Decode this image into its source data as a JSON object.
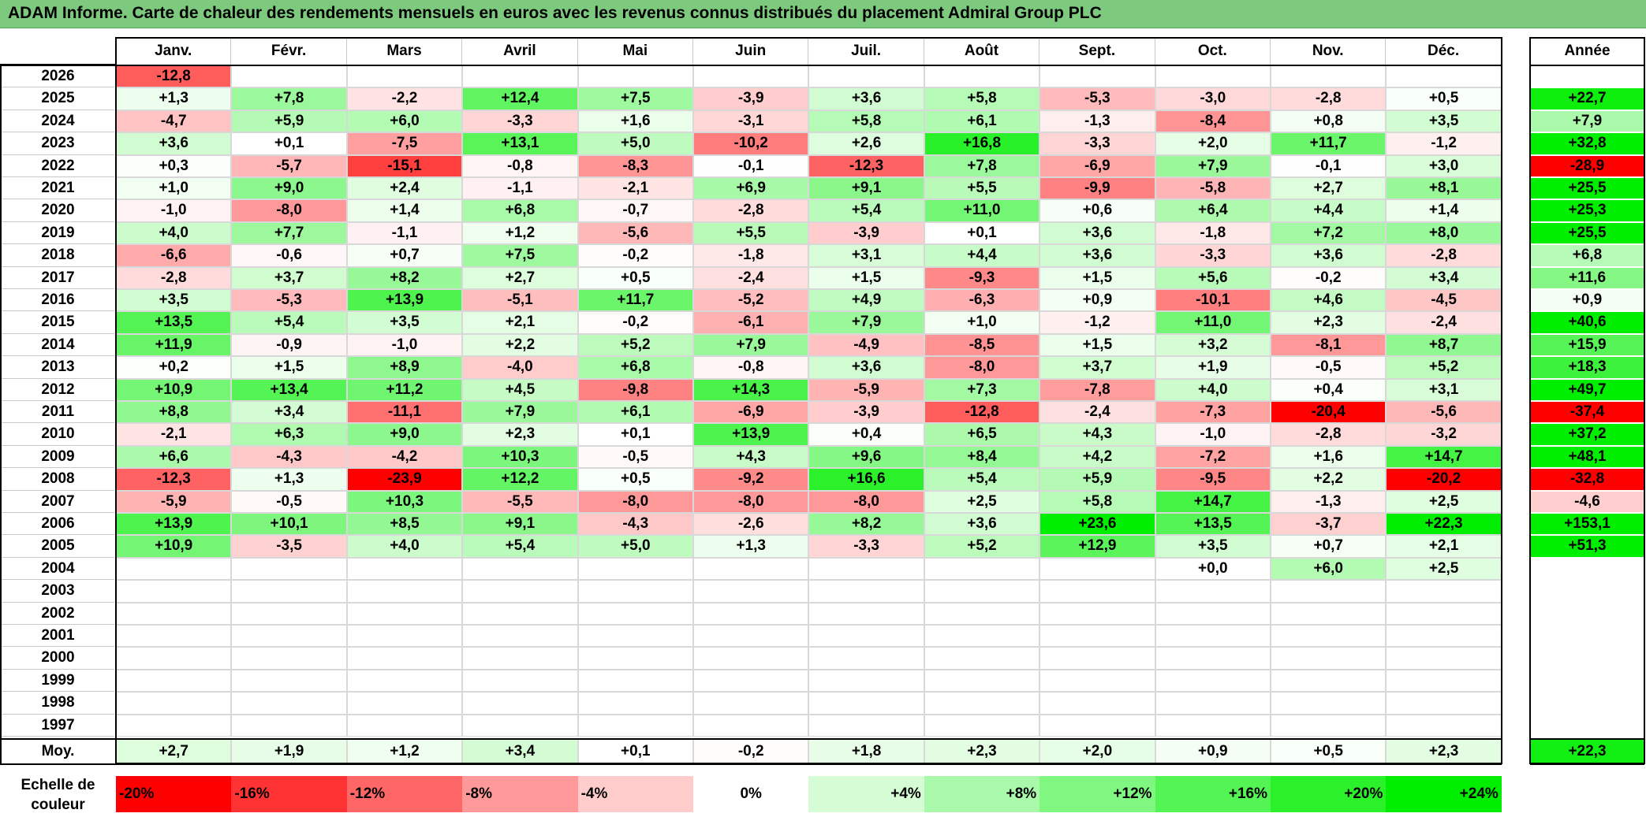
{
  "title": "ADAM Informe. Carte de chaleur des rendements mensuels en euros avec les revenus connus distribués du placement Admiral Group PLC",
  "colors": {
    "title_bg": "#7dc97d",
    "positive_max": "#00ee00",
    "negative_max": "#ff0000"
  },
  "chart_data": {
    "type": "heatmap",
    "title": "ADAM Informe. Carte de chaleur des rendements mensuels en euros avec les revenus connus distribués du placement Admiral Group PLC",
    "months": [
      "Janv.",
      "Févr.",
      "Mars",
      "Avril",
      "Mai",
      "Juin",
      "Juil.",
      "Août",
      "Sept.",
      "Oct.",
      "Nov.",
      "Déc."
    ],
    "year_header": "Année",
    "rows": [
      {
        "year": "2026",
        "values": [
          "-12,8",
          "",
          "",
          "",
          "",
          "",
          "",
          "",
          "",
          "",
          "",
          ""
        ],
        "annual": ""
      },
      {
        "year": "2025",
        "values": [
          "+1,3",
          "+7,8",
          "-2,2",
          "+12,4",
          "+7,5",
          "-3,9",
          "+3,6",
          "+5,8",
          "-5,3",
          "-3,0",
          "-2,8",
          "+0,5"
        ],
        "annual": "+22,7"
      },
      {
        "year": "2024",
        "values": [
          "-4,7",
          "+5,9",
          "+6,0",
          "-3,3",
          "+1,6",
          "-3,1",
          "+5,8",
          "+6,1",
          "-1,3",
          "-8,4",
          "+0,8",
          "+3,5"
        ],
        "annual": "+7,9"
      },
      {
        "year": "2023",
        "values": [
          "+3,6",
          "+0,1",
          "-7,5",
          "+13,1",
          "+5,0",
          "-10,2",
          "+2,6",
          "+16,8",
          "-3,3",
          "+2,0",
          "+11,7",
          "-1,2"
        ],
        "annual": "+32,8"
      },
      {
        "year": "2022",
        "values": [
          "+0,3",
          "-5,7",
          "-15,1",
          "-0,8",
          "-8,3",
          "-0,1",
          "-12,3",
          "+7,8",
          "-6,9",
          "+7,9",
          "-0,1",
          "+3,0"
        ],
        "annual": "-28,9"
      },
      {
        "year": "2021",
        "values": [
          "+1,0",
          "+9,0",
          "+2,4",
          "-1,1",
          "-2,1",
          "+6,9",
          "+9,1",
          "+5,5",
          "-9,9",
          "-5,8",
          "+2,7",
          "+8,1"
        ],
        "annual": "+25,5"
      },
      {
        "year": "2020",
        "values": [
          "-1,0",
          "-8,0",
          "+1,4",
          "+6,8",
          "-0,7",
          "-2,8",
          "+5,4",
          "+11,0",
          "+0,6",
          "+6,4",
          "+4,4",
          "+1,4"
        ],
        "annual": "+25,3"
      },
      {
        "year": "2019",
        "values": [
          "+4,0",
          "+7,7",
          "-1,1",
          "+1,2",
          "-5,6",
          "+5,5",
          "-3,9",
          "+0,1",
          "+3,6",
          "-1,8",
          "+7,2",
          "+8,0"
        ],
        "annual": "+25,5"
      },
      {
        "year": "2018",
        "values": [
          "-6,6",
          "-0,6",
          "+0,7",
          "+7,5",
          "-0,2",
          "-1,8",
          "+3,1",
          "+4,4",
          "+3,6",
          "-3,3",
          "+3,6",
          "-2,8"
        ],
        "annual": "+6,8"
      },
      {
        "year": "2017",
        "values": [
          "-2,8",
          "+3,7",
          "+8,2",
          "+2,7",
          "+0,5",
          "-2,4",
          "+1,5",
          "-9,3",
          "+1,5",
          "+5,6",
          "-0,2",
          "+3,4"
        ],
        "annual": "+11,6"
      },
      {
        "year": "2016",
        "values": [
          "+3,5",
          "-5,3",
          "+13,9",
          "-5,1",
          "+11,7",
          "-5,2",
          "+4,9",
          "-6,3",
          "+0,9",
          "-10,1",
          "+4,6",
          "-4,5"
        ],
        "annual": "+0,9"
      },
      {
        "year": "2015",
        "values": [
          "+13,5",
          "+5,4",
          "+3,5",
          "+2,1",
          "-0,2",
          "-6,1",
          "+7,9",
          "+1,0",
          "-1,2",
          "+11,0",
          "+2,3",
          "-2,4"
        ],
        "annual": "+40,6"
      },
      {
        "year": "2014",
        "values": [
          "+11,9",
          "-0,9",
          "-1,0",
          "+2,2",
          "+5,2",
          "+7,9",
          "-4,9",
          "-8,5",
          "+1,5",
          "+3,2",
          "-8,1",
          "+8,7"
        ],
        "annual": "+15,9"
      },
      {
        "year": "2013",
        "values": [
          "+0,2",
          "+1,5",
          "+8,9",
          "-4,0",
          "+6,8",
          "-0,8",
          "+3,6",
          "-8,0",
          "+3,7",
          "+1,9",
          "-0,5",
          "+5,2"
        ],
        "annual": "+18,3"
      },
      {
        "year": "2012",
        "values": [
          "+10,9",
          "+13,4",
          "+11,2",
          "+4,5",
          "-9,8",
          "+14,3",
          "-5,9",
          "+7,3",
          "-7,8",
          "+4,0",
          "+0,4",
          "+3,1"
        ],
        "annual": "+49,7"
      },
      {
        "year": "2011",
        "values": [
          "+8,8",
          "+3,4",
          "-11,1",
          "+7,9",
          "+6,1",
          "-6,9",
          "-3,9",
          "-12,8",
          "-2,4",
          "-7,3",
          "-20,4",
          "-5,6"
        ],
        "annual": "-37,4"
      },
      {
        "year": "2010",
        "values": [
          "-2,1",
          "+6,3",
          "+9,0",
          "+2,3",
          "+0,1",
          "+13,9",
          "+0,4",
          "+6,5",
          "+4,3",
          "-1,0",
          "-2,8",
          "-3,2"
        ],
        "annual": "+37,2"
      },
      {
        "year": "2009",
        "values": [
          "+6,6",
          "-4,3",
          "-4,2",
          "+10,3",
          "-0,5",
          "+4,3",
          "+9,6",
          "+8,4",
          "+4,2",
          "-7,2",
          "+1,6",
          "+14,7"
        ],
        "annual": "+48,1"
      },
      {
        "year": "2008",
        "values": [
          "-12,3",
          "+1,3",
          "-23,9",
          "+12,2",
          "+0,5",
          "-9,2",
          "+16,6",
          "+5,4",
          "+5,9",
          "-9,5",
          "+2,2",
          "-20,2"
        ],
        "annual": "-32,8"
      },
      {
        "year": "2007",
        "values": [
          "-5,9",
          "-0,5",
          "+10,3",
          "-5,5",
          "-8,0",
          "-8,0",
          "-8,0",
          "+2,5",
          "+5,8",
          "+14,7",
          "-1,3",
          "+2,5"
        ],
        "annual": "-4,6"
      },
      {
        "year": "2006",
        "values": [
          "+13,9",
          "+10,1",
          "+8,5",
          "+9,1",
          "-4,3",
          "-2,6",
          "+8,2",
          "+3,6",
          "+23,6",
          "+13,5",
          "-3,7",
          "+22,3"
        ],
        "annual": "+153,1"
      },
      {
        "year": "2005",
        "values": [
          "+10,9",
          "-3,5",
          "+4,0",
          "+5,4",
          "+5,0",
          "+1,3",
          "-3,3",
          "+5,2",
          "+12,9",
          "+3,5",
          "+0,7",
          "+2,1"
        ],
        "annual": "+51,3"
      },
      {
        "year": "2004",
        "values": [
          "",
          "",
          "",
          "",
          "",
          "",
          "",
          "",
          "",
          "+0,0",
          "+6,0",
          "+2,5"
        ],
        "annual": ""
      },
      {
        "year": "2003",
        "values": [
          "",
          "",
          "",
          "",
          "",
          "",
          "",
          "",
          "",
          "",
          "",
          ""
        ],
        "annual": ""
      },
      {
        "year": "2002",
        "values": [
          "",
          "",
          "",
          "",
          "",
          "",
          "",
          "",
          "",
          "",
          "",
          ""
        ],
        "annual": ""
      },
      {
        "year": "2001",
        "values": [
          "",
          "",
          "",
          "",
          "",
          "",
          "",
          "",
          "",
          "",
          "",
          ""
        ],
        "annual": ""
      },
      {
        "year": "2000",
        "values": [
          "",
          "",
          "",
          "",
          "",
          "",
          "",
          "",
          "",
          "",
          "",
          ""
        ],
        "annual": ""
      },
      {
        "year": "1999",
        "values": [
          "",
          "",
          "",
          "",
          "",
          "",
          "",
          "",
          "",
          "",
          "",
          ""
        ],
        "annual": ""
      },
      {
        "year": "1998",
        "values": [
          "",
          "",
          "",
          "",
          "",
          "",
          "",
          "",
          "",
          "",
          "",
          ""
        ],
        "annual": ""
      },
      {
        "year": "1997",
        "values": [
          "",
          "",
          "",
          "",
          "",
          "",
          "",
          "",
          "",
          "",
          "",
          ""
        ],
        "annual": ""
      }
    ],
    "average": {
      "label": "Moy.",
      "values": [
        "+2,7",
        "+1,9",
        "+1,2",
        "+3,4",
        "+0,1",
        "-0,2",
        "+1,8",
        "+2,3",
        "+2,0",
        "+0,9",
        "+0,5",
        "+2,3"
      ],
      "annual": "+22,3"
    },
    "legend": {
      "label": "Echelle de couleur",
      "items": [
        {
          "text": "-20%",
          "value": -20
        },
        {
          "text": "-16%",
          "value": -16
        },
        {
          "text": "-12%",
          "value": -12
        },
        {
          "text": "-8%",
          "value": -8
        },
        {
          "text": "-4%",
          "value": -4
        },
        {
          "text": "0%",
          "value": 0
        },
        {
          "text": "+4%",
          "value": 4
        },
        {
          "text": "+8%",
          "value": 8
        },
        {
          "text": "+12%",
          "value": 12
        },
        {
          "text": "+16%",
          "value": 16
        },
        {
          "text": "+20%",
          "value": 20
        },
        {
          "text": "+24%",
          "value": 24
        }
      ]
    }
  }
}
